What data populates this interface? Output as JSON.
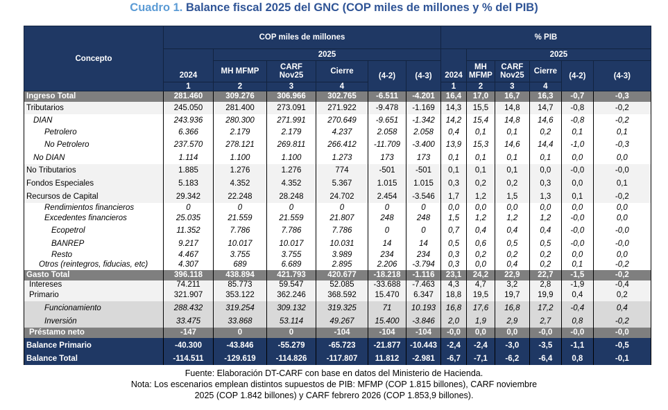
{
  "title": {
    "lead": "Cuadro 1.",
    "rest": "Balance fiscal 2025 del GNC (COP miles de millones y % del PIB)"
  },
  "header": {
    "concepto": "Concepto",
    "group_cop": "COP miles de millones",
    "group_pib": "% PIB",
    "year": "2025",
    "cols": [
      "2024",
      "MH MFMP",
      "CARF Nov25",
      "Cierre",
      "(4-2)",
      "(4-3)"
    ],
    "nums": [
      "1",
      "2",
      "3",
      "4"
    ]
  },
  "rows": [
    {
      "label": "Ingreso Total",
      "style": "hl",
      "indent": 0,
      "cop": [
        "281.460",
        "309.276",
        "306.966",
        "302.765",
        "-6.511",
        "-4.201"
      ],
      "pib": [
        "16,4",
        "17,0",
        "16,7",
        "16,3",
        "-0,7",
        "-0,3"
      ]
    },
    {
      "label": "Tributarios",
      "style": "lg",
      "indent": 0,
      "cop": [
        "245.050",
        "281.400",
        "273.091",
        "271.922",
        "-9.478",
        "-1.169"
      ],
      "pib": [
        "14,3",
        "15,5",
        "14,8",
        "14,7",
        "-0,8",
        "-0,2"
      ]
    },
    {
      "label": "DIAN",
      "style": "it",
      "indent": 10,
      "cop": [
        "243.936",
        "280.300",
        "271.991",
        "270.649",
        "-9.651",
        "-1.342"
      ],
      "pib": [
        "14,2",
        "15,4",
        "14,8",
        "14,6",
        "-0,8",
        "-0,2"
      ]
    },
    {
      "label": "Petrolero",
      "style": "it",
      "indent": 26,
      "cop": [
        "6.366",
        "2.179",
        "2.179",
        "4.237",
        "2.058",
        "2.058"
      ],
      "pib": [
        "0,4",
        "0,1",
        "0,1",
        "0,2",
        "0,1",
        "0,1"
      ]
    },
    {
      "label": "No Petrolero",
      "style": "it",
      "indent": 26,
      "cop": [
        "237.570",
        "278.121",
        "269.811",
        "266.412",
        "-11.709",
        "-3.400"
      ],
      "pib": [
        "13,9",
        "15,3",
        "14,6",
        "14,4",
        "-1,0",
        "-0,3"
      ]
    },
    {
      "label": "No DIAN",
      "style": "it",
      "indent": 10,
      "cop": [
        "1.114",
        "1.100",
        "1.100",
        "1.273",
        "173",
        "173"
      ],
      "pib": [
        "0,1",
        "0,1",
        "0,1",
        "0,1",
        "0,0",
        "0,0"
      ]
    },
    {
      "label": "No Tributarios",
      "style": "lg",
      "indent": 0,
      "cop": [
        "1.885",
        "1.276",
        "1.276",
        "774",
        "-501",
        "-501"
      ],
      "pib": [
        "0,1",
        "0,1",
        "0,1",
        "0,0",
        "-0,0",
        "-0,0"
      ]
    },
    {
      "label": "Fondos Especiales",
      "style": "lg",
      "indent": 0,
      "cop": [
        "5.183",
        "4.352",
        "4.352",
        "5.367",
        "1.015",
        "1.015"
      ],
      "pib": [
        "0,3",
        "0,2",
        "0,2",
        "0,3",
        "0,0",
        "0,1"
      ]
    },
    {
      "label": "Recursos de Capital",
      "style": "lg",
      "indent": 0,
      "cop": [
        "29.342",
        "22.248",
        "28.248",
        "24.702",
        "2.454",
        "-3.546"
      ],
      "pib": [
        "1,7",
        "1,2",
        "1,5",
        "1,3",
        "0,1",
        "-0,2"
      ]
    },
    {
      "label": "Rendimientos financieros",
      "style": "it",
      "indent": 26,
      "cop": [
        "0",
        "0",
        "0",
        "0",
        "0",
        "0"
      ],
      "pib": [
        "0,0",
        "0,0",
        "0,0",
        "0,0",
        "0,0",
        "0,0"
      ]
    },
    {
      "label": "Excedentes financieros",
      "style": "it",
      "indent": 26,
      "cop": [
        "25.035",
        "21.559",
        "21.559",
        "21.807",
        "248",
        "248"
      ],
      "pib": [
        "1,5",
        "1,2",
        "1,2",
        "1,2",
        "-0,0",
        "0,0"
      ]
    },
    {
      "label": "Ecopetrol",
      "style": "it",
      "indent": 36,
      "cop": [
        "11.352",
        "7.786",
        "7.786",
        "7.786",
        "0",
        "0"
      ],
      "pib": [
        "0,7",
        "0,4",
        "0,4",
        "0,4",
        "-0,0",
        "-0,0"
      ]
    },
    {
      "label": "BANREP",
      "style": "it",
      "indent": 36,
      "cop": [
        "9.217",
        "10.017",
        "10.017",
        "10.031",
        "14",
        "14"
      ],
      "pib": [
        "0,5",
        "0,6",
        "0,5",
        "0,5",
        "-0,0",
        "-0,0"
      ]
    },
    {
      "label": "Resto",
      "style": "it",
      "indent": 36,
      "cop": [
        "4.467",
        "3.755",
        "3.755",
        "3.989",
        "234",
        "234"
      ],
      "pib": [
        "0,3",
        "0,2",
        "0,2",
        "0,2",
        "0,0",
        "0,0"
      ]
    },
    {
      "label": "Otros (reintegros, fiducias, etc)",
      "style": "it",
      "indent": 18,
      "cop": [
        "4.307",
        "689",
        "6.689",
        "2.895",
        "2.206",
        "-3.794"
      ],
      "pib": [
        "0,3",
        "0,0",
        "0,4",
        "0,2",
        "0,1",
        "-0,2"
      ]
    },
    {
      "label": "Gasto Total",
      "style": "hl",
      "indent": 0,
      "cop": [
        "396.118",
        "438.894",
        "421.793",
        "420.677",
        "-18.218",
        "-1.116"
      ],
      "pib": [
        "23,1",
        "24,2",
        "22,9",
        "22,7",
        "-1,5",
        "-0,2"
      ]
    },
    {
      "label": "Intereses",
      "style": "lg",
      "indent": 4,
      "cop": [
        "74.211",
        "85.773",
        "59.547",
        "52.085",
        "-33.688",
        "-7.463"
      ],
      "pib": [
        "4,3",
        "4,7",
        "3,2",
        "2,8",
        "-1,9",
        "-0,4"
      ]
    },
    {
      "label": "Primario",
      "style": "lg",
      "indent": 4,
      "cop": [
        "321.907",
        "353.122",
        "362.246",
        "368.592",
        "15.470",
        "6.347"
      ],
      "pib": [
        "18,8",
        "19,5",
        "19,7",
        "19,9",
        "0,4",
        "0,2"
      ]
    },
    {
      "label": "Funcionamiento",
      "style": "md it",
      "indent": 26,
      "cop": [
        "288.432",
        "319.254",
        "309.132",
        "319.325",
        "71",
        "10.193"
      ],
      "pib": [
        "16,8",
        "17,6",
        "16,8",
        "17,2",
        "-0,4",
        "0,4"
      ]
    },
    {
      "label": "Inversión",
      "style": "md it",
      "indent": 26,
      "cop": [
        "33.475",
        "33.868",
        "53.114",
        "49.267",
        "15.400",
        "-3.846"
      ],
      "pib": [
        "2,0",
        "1,9",
        "2,9",
        "2,7",
        "0,8",
        "-0,2"
      ]
    },
    {
      "label": "Préstamo neto",
      "style": "hl",
      "indent": 4,
      "cop": [
        "-147",
        "0",
        "0",
        "-104",
        "-104",
        "-104"
      ],
      "pib": [
        "-0,0",
        "0,0",
        "0,0",
        "-0,0",
        "-0,0",
        "-0,0"
      ]
    },
    {
      "label": "Balance Primario",
      "style": "nv",
      "indent": 0,
      "cop": [
        "-40.300",
        "-43.846",
        "-55.279",
        "-65.723",
        "-21.877",
        "-10.443"
      ],
      "pib": [
        "-2,4",
        "-2,4",
        "-3,0",
        "-3,5",
        "-1,1",
        "-0,5"
      ]
    },
    {
      "label": "Balance Total",
      "style": "nv",
      "indent": 0,
      "cop": [
        "-114.511",
        "-129.619",
        "-114.826",
        "-117.807",
        "11.812",
        "-2.981"
      ],
      "pib": [
        "-6,7",
        "-7,1",
        "-6,2",
        "-6,4",
        "0,8",
        "-0,1"
      ]
    }
  ],
  "notes": {
    "source": "Fuente: Elaboración DT-CARF con base en datos del Ministerio de Hacienda.",
    "note1": "Nota: Los escenarios emplean distintos supuestos de PIB: MFMP (COP 1.815 billones), CARF noviembre",
    "note2": "2025 (COP 1.842 billones) y CARF febrero 2026 (COP 1.853,9 billones)."
  }
}
